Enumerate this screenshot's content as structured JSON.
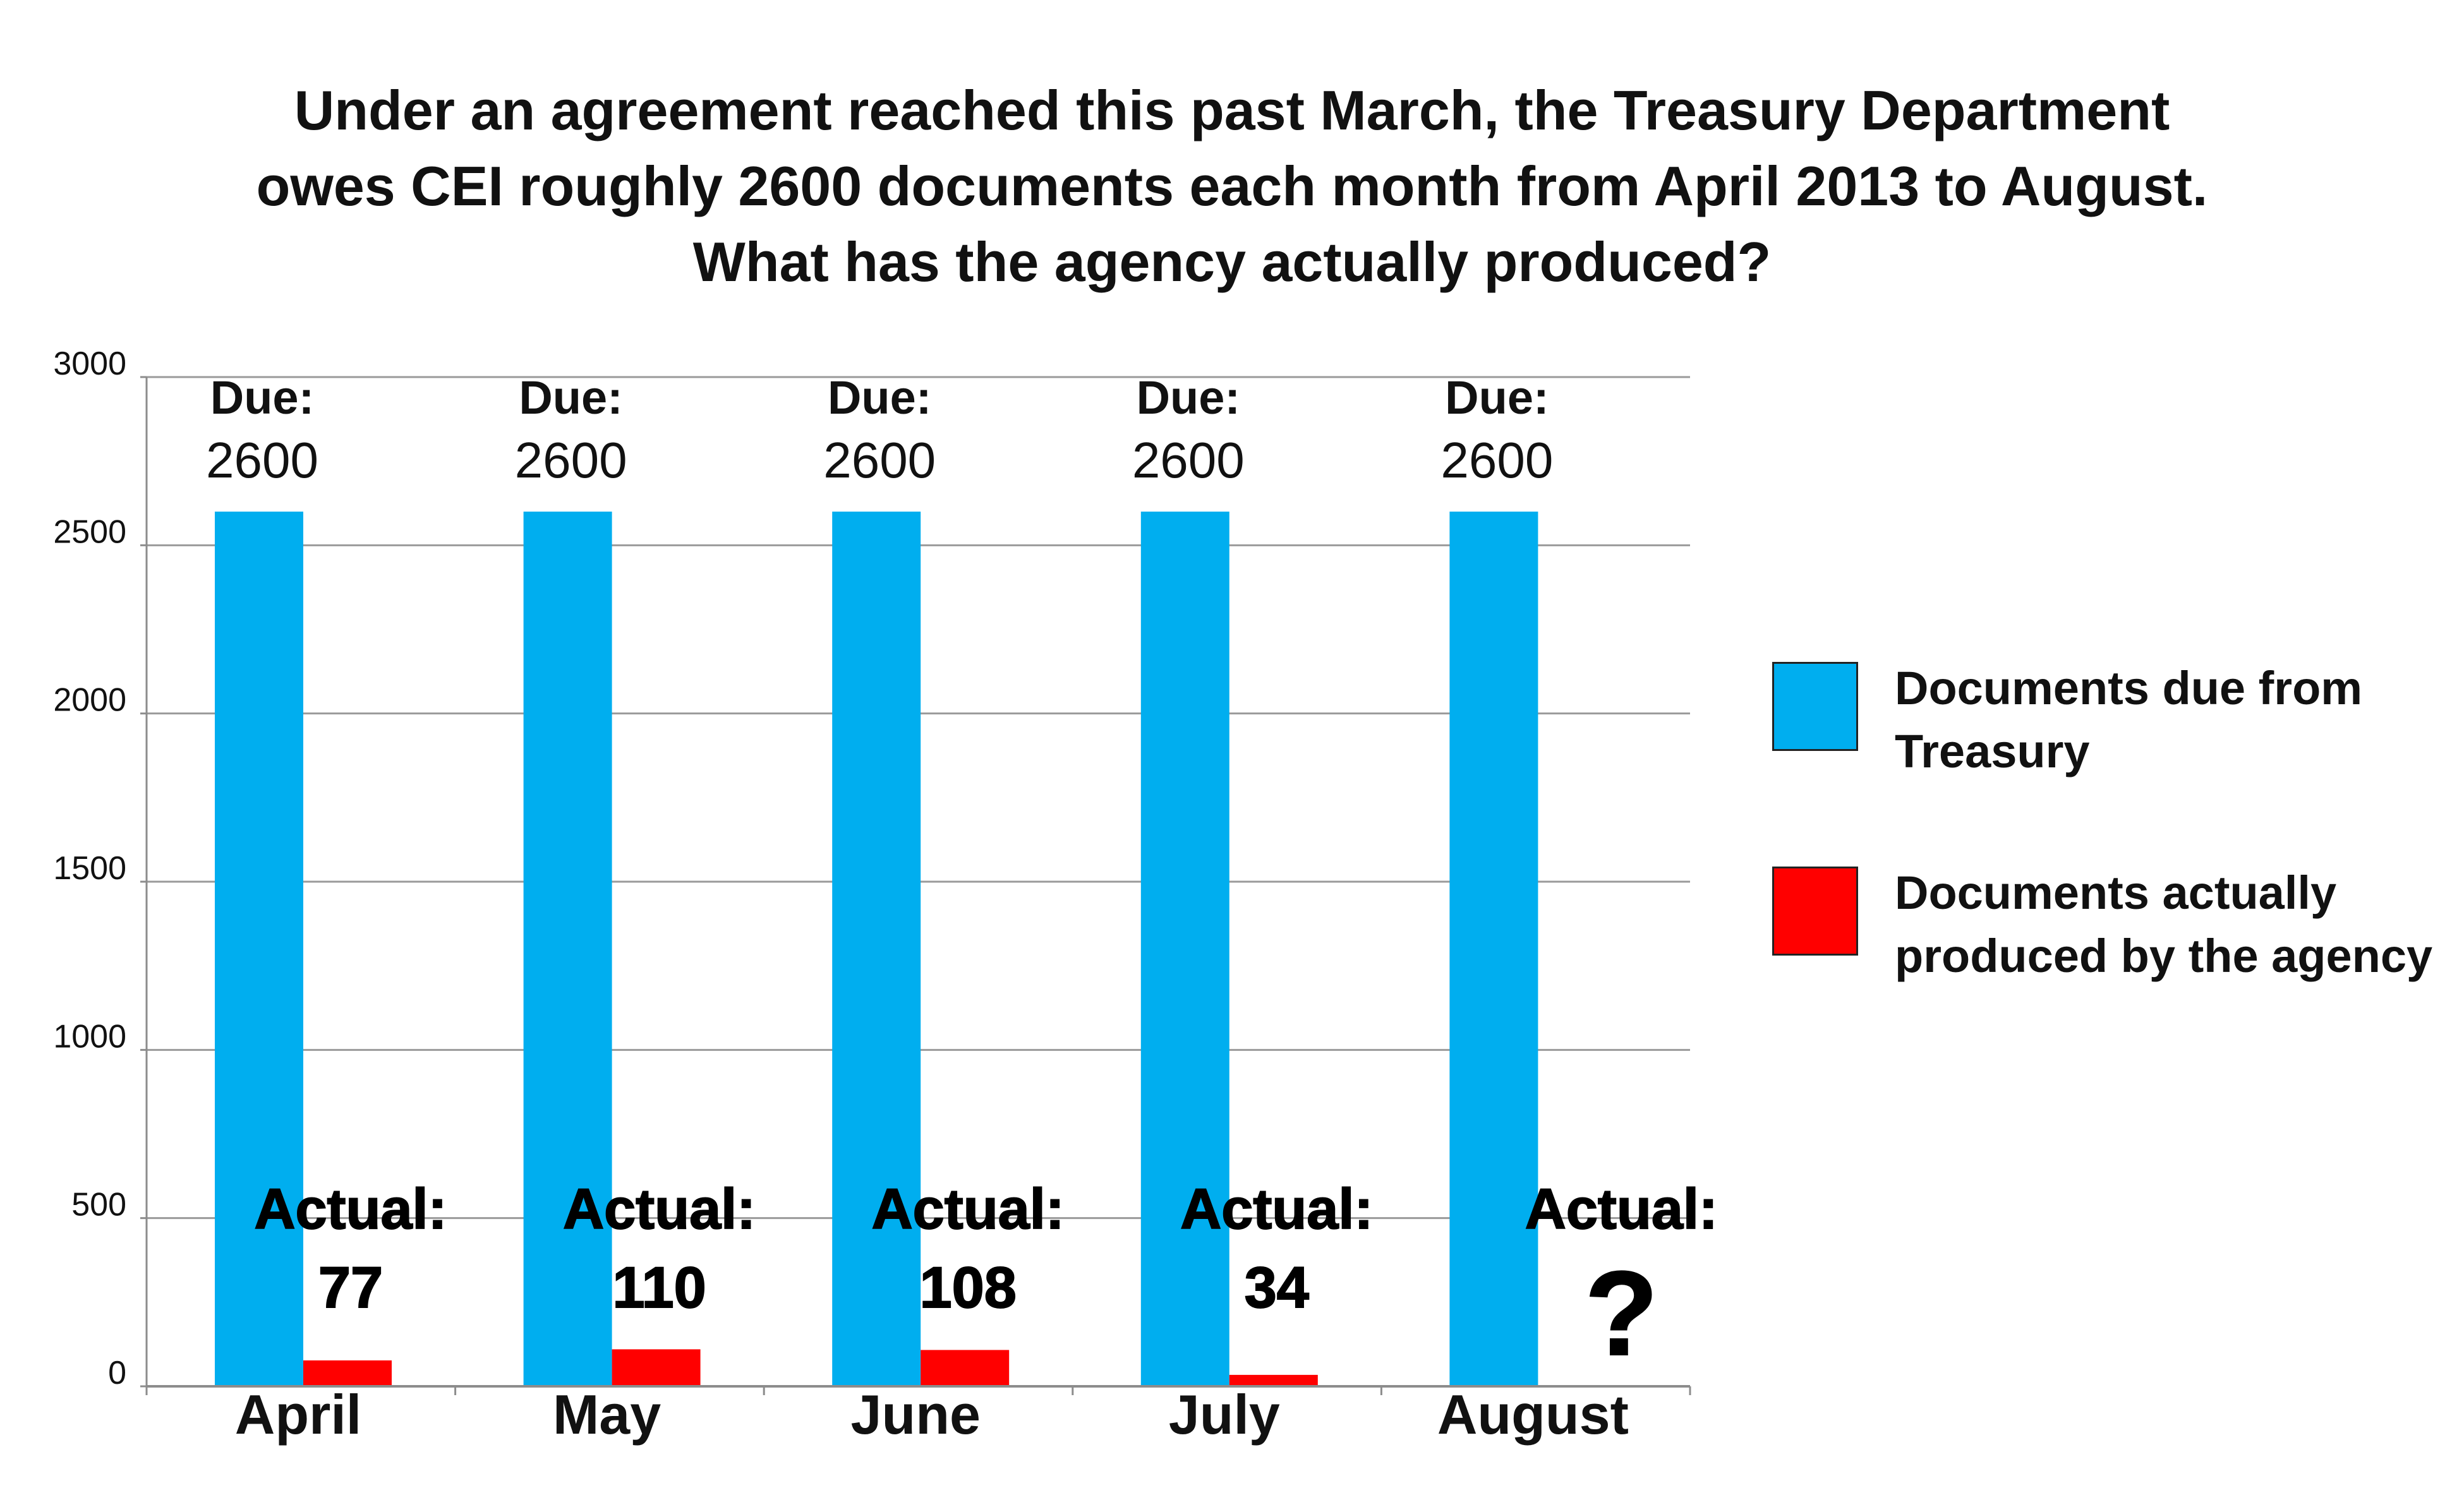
{
  "title_lines": [
    "Under an agreement reached this past March, the Treasury Department",
    "owes CEI roughly 2600 documents each month from April 2013 to August.",
    "What has the agency actually produced?"
  ],
  "colors": {
    "due": "#00AEEF",
    "actual": "#FF0000",
    "grid": "#9a9a9a",
    "axis": "#8c8c8c"
  },
  "legend": [
    {
      "label_line1": "Documents due from",
      "label_line2": "Treasury",
      "color": "#00AEEF"
    },
    {
      "label_line1": "Documents actually",
      "label_line2": "produced by the agency",
      "color": "#FF0000"
    }
  ],
  "chart_data": {
    "type": "bar",
    "categories": [
      "April",
      "May",
      "June",
      "July",
      "August"
    ],
    "series": [
      {
        "name": "Documents due from Treasury",
        "values": [
          2600,
          2600,
          2600,
          2600,
          2600
        ]
      },
      {
        "name": "Documents actually produced by the agency",
        "values": [
          77,
          110,
          108,
          34,
          null
        ]
      }
    ],
    "ylim": [
      0,
      3000
    ],
    "yticks": [
      0,
      500,
      1000,
      1500,
      2000,
      2500,
      3000
    ],
    "grid": true,
    "legend_position": "right",
    "due_labels": [
      {
        "prefix": "Due:",
        "value": "2600"
      },
      {
        "prefix": "Due:",
        "value": "2600"
      },
      {
        "prefix": "Due:",
        "value": "2600"
      },
      {
        "prefix": "Due:",
        "value": "2600"
      },
      {
        "prefix": "Due:",
        "value": "2600"
      }
    ],
    "actual_labels": [
      {
        "prefix": "Actual:",
        "value": "77"
      },
      {
        "prefix": "Actual:",
        "value": "110"
      },
      {
        "prefix": "Actual:",
        "value": "108"
      },
      {
        "prefix": "Actual:",
        "value": "34"
      },
      {
        "prefix": "Actual:",
        "value": "?"
      }
    ]
  }
}
